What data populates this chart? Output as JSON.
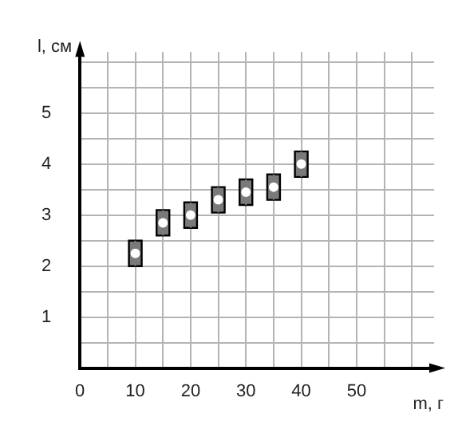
{
  "chart_data": {
    "type": "scatter",
    "xlabel": "m, г",
    "ylabel": "l, см",
    "x": [
      10,
      15,
      20,
      25,
      30,
      35,
      40
    ],
    "values": [
      2.25,
      2.85,
      3.0,
      3.3,
      3.45,
      3.55,
      4.0
    ],
    "errors": [
      0.25,
      0.25,
      0.25,
      0.25,
      0.25,
      0.25,
      0.25
    ],
    "color": "#7a7a7a",
    "xlim": [
      0,
      64
    ],
    "xticks": [
      0,
      {
        "value": 5,
        "label": null
      },
      10,
      {
        "value": 15,
        "label": null
      },
      20,
      {
        "value": 25,
        "label": null
      },
      30,
      {
        "value": 35,
        "label": null
      },
      40,
      {
        "value": 45,
        "label": null
      },
      50,
      {
        "value": 55,
        "label": null
      },
      {
        "value": 60,
        "label": null
      }
    ],
    "ylim": [
      0,
      6.2
    ],
    "yticks": [
      {
        "value": 0.5,
        "label": null
      },
      1,
      {
        "value": 1.5,
        "label": null
      },
      2,
      {
        "value": 2.5,
        "label": null
      },
      3,
      {
        "value": 3.5,
        "label": null
      },
      4,
      {
        "value": 4.5,
        "label": null
      },
      5,
      {
        "value": 5.5,
        "label": null
      },
      {
        "value": 6,
        "label": null
      }
    ],
    "grid": true
  }
}
